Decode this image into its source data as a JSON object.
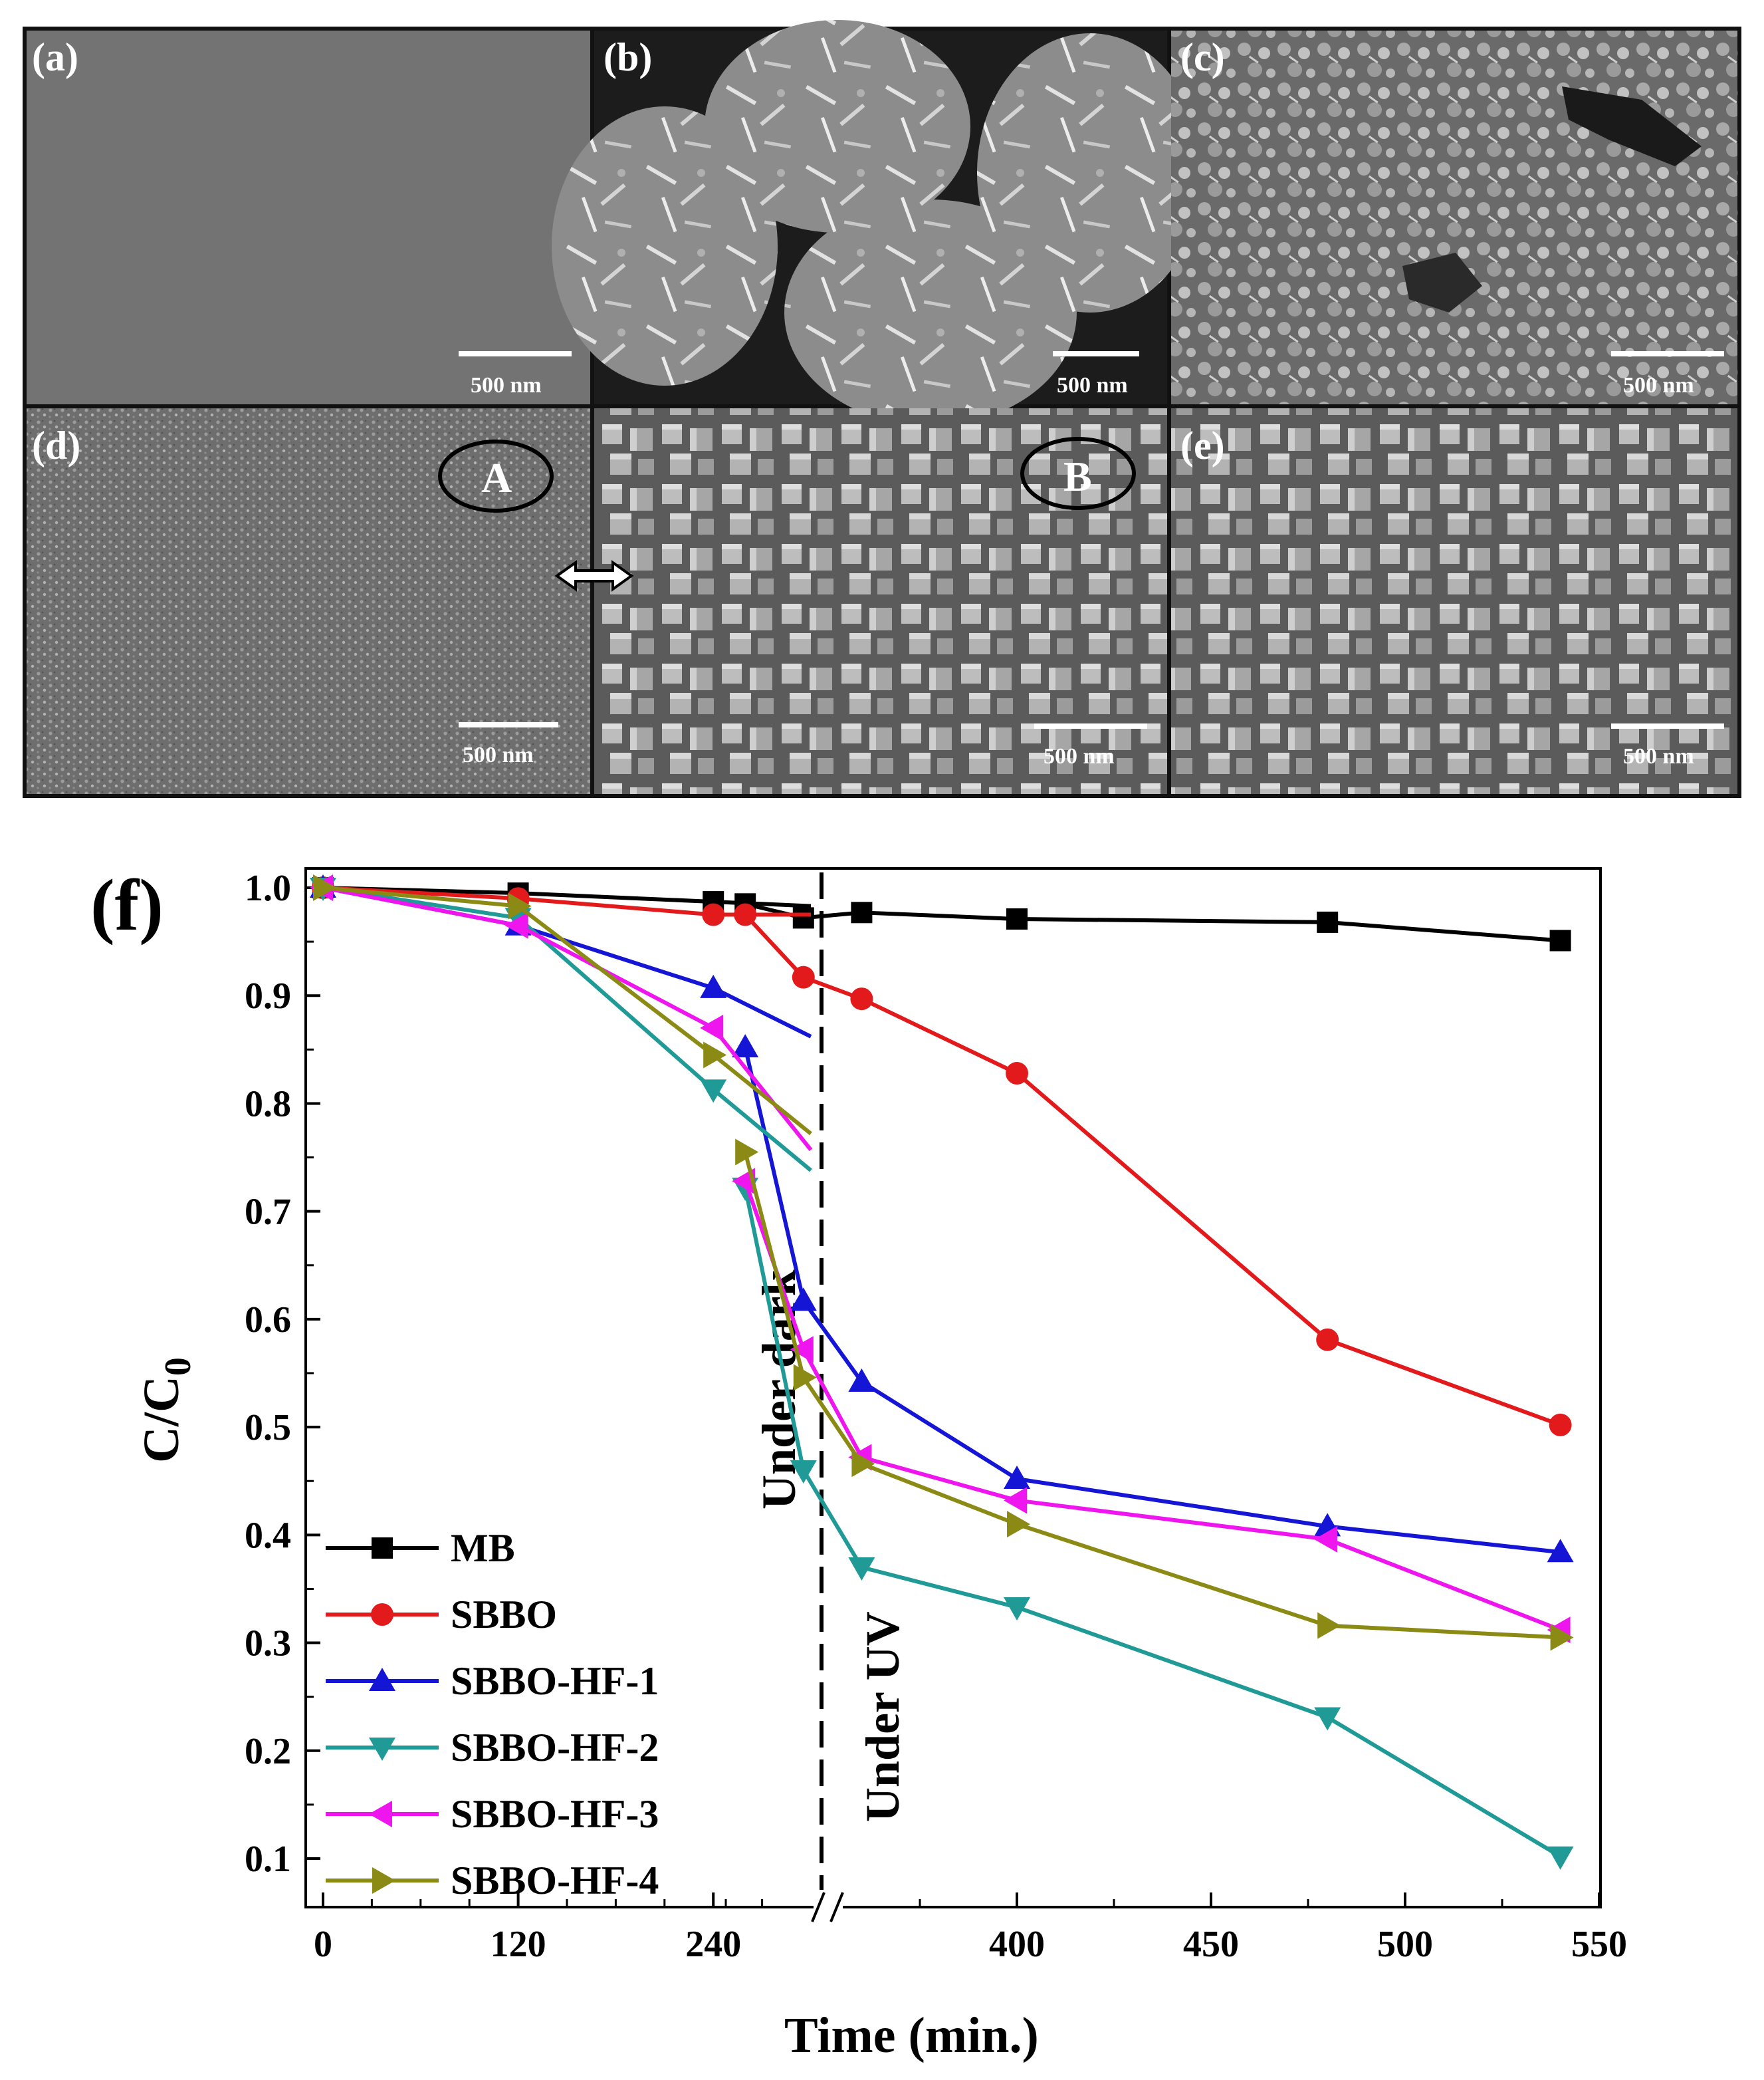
{
  "sem_panels": {
    "labels": [
      "(a)",
      "(b)",
      "(c)",
      "(d)",
      "",
      "(e)"
    ],
    "scale_bar_label": "500 nm",
    "region_labels": [
      "A",
      "B"
    ],
    "colors": {
      "background": "#6f6f6f",
      "grain": "#a8a8a8",
      "bright": "#dcdcdc",
      "frame": "#111111"
    }
  },
  "chart_data": {
    "type": "line",
    "panel_label": "(f)",
    "xlabel": "Time (min.)",
    "ylabel_main": "C/C",
    "ylabel_sub": "0",
    "annotations": {
      "dark": "Under dark",
      "uv": "Under UV"
    },
    "x_ticks_left": [
      "0",
      "120",
      "240"
    ],
    "x_ticks_right": [
      "400",
      "450",
      "500",
      "550"
    ],
    "y_ticks": [
      "1.0",
      "0.9",
      "0.8",
      "0.7",
      "0.6",
      "0.5",
      "0.4",
      "0.3",
      "0.2",
      "0.1"
    ],
    "x_axis": {
      "segment_1": [
        0,
        300
      ],
      "segment_2": [
        315,
        550
      ],
      "break_between": [
        300,
        315
      ]
    },
    "ylim": [
      0.07,
      1.03
    ],
    "legend_position": "bottom-left",
    "grid": false,
    "series": [
      {
        "name": "MB",
        "color": "#000000",
        "marker": "square",
        "dark": [
          [
            0,
            1.0
          ],
          [
            120,
            0.995
          ],
          [
            240,
            0.987
          ],
          [
            300,
            0.983
          ]
        ],
        "uv": [
          [
            330,
            0.985
          ],
          [
            345,
            0.972
          ],
          [
            360,
            0.977
          ],
          [
            400,
            0.971
          ],
          [
            480,
            0.968
          ],
          [
            540,
            0.951
          ]
        ]
      },
      {
        "name": "SBBO",
        "color": "#e31a1c",
        "marker": "circle",
        "dark": [
          [
            0,
            1.0
          ],
          [
            120,
            0.99
          ],
          [
            240,
            0.975
          ],
          [
            300,
            0.975
          ]
        ],
        "uv": [
          [
            330,
            0.975
          ],
          [
            345,
            0.917
          ],
          [
            360,
            0.897
          ],
          [
            400,
            0.828
          ],
          [
            480,
            0.581
          ],
          [
            540,
            0.502
          ]
        ]
      },
      {
        "name": "SBBO-HF-1",
        "color": "#1515d6",
        "marker": "triangle-up",
        "dark": [
          [
            0,
            1.0
          ],
          [
            120,
            0.965
          ],
          [
            240,
            0.907
          ],
          [
            300,
            0.862
          ]
        ],
        "uv": [
          [
            330,
            0.852
          ],
          [
            345,
            0.617
          ],
          [
            360,
            0.542
          ],
          [
            400,
            0.452
          ],
          [
            480,
            0.408
          ],
          [
            540,
            0.384
          ]
        ]
      },
      {
        "name": "SBBO-HF-2",
        "color": "#1f9a96",
        "marker": "triangle-down",
        "dark": [
          [
            0,
            1.0
          ],
          [
            120,
            0.972
          ],
          [
            240,
            0.813
          ],
          [
            300,
            0.738
          ]
        ],
        "uv": [
          [
            330,
            0.722
          ],
          [
            345,
            0.46
          ],
          [
            360,
            0.37
          ],
          [
            400,
            0.333
          ],
          [
            480,
            0.231
          ],
          [
            540,
            0.102
          ]
        ]
      },
      {
        "name": "SBBO-HF-3",
        "color": "#ef15ef",
        "marker": "triangle-left",
        "dark": [
          [
            0,
            1.0
          ],
          [
            120,
            0.965
          ],
          [
            240,
            0.87
          ],
          [
            300,
            0.757
          ]
        ],
        "uv": [
          [
            330,
            0.728
          ],
          [
            345,
            0.572
          ],
          [
            360,
            0.472
          ],
          [
            400,
            0.432
          ],
          [
            480,
            0.396
          ],
          [
            540,
            0.312
          ]
        ]
      },
      {
        "name": "SBBO-HF-4",
        "color": "#8a8a14",
        "marker": "triangle-right",
        "dark": [
          [
            0,
            1.0
          ],
          [
            120,
            0.983
          ],
          [
            240,
            0.845
          ],
          [
            300,
            0.772
          ]
        ],
        "uv": [
          [
            330,
            0.755
          ],
          [
            345,
            0.546
          ],
          [
            360,
            0.466
          ],
          [
            400,
            0.41
          ],
          [
            480,
            0.316
          ],
          [
            540,
            0.305
          ]
        ]
      }
    ]
  }
}
